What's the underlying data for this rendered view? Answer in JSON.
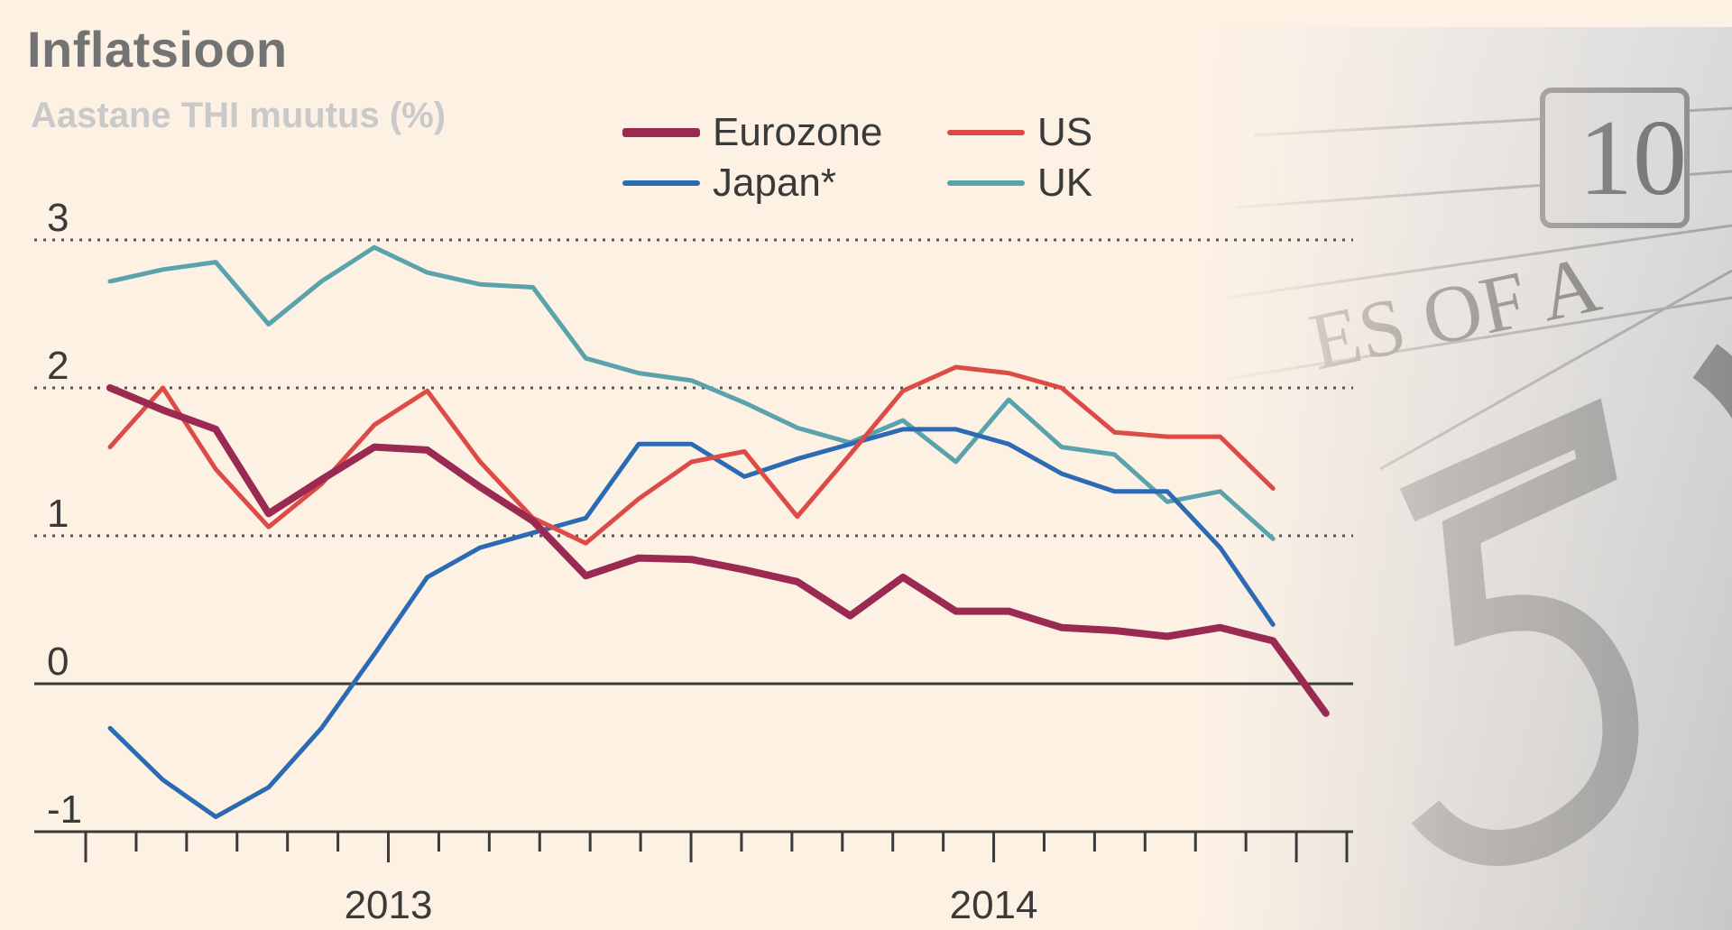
{
  "colors": {
    "background": "#fdf1e4",
    "eurozone": "#9b2a53",
    "us": "#dd4b47",
    "japan": "#2c6bb4",
    "uk": "#5aa3ad",
    "axis": "#3a3a3a",
    "grid": "#555555"
  },
  "chart_data": {
    "type": "line",
    "title": "Inflatsioon",
    "subtitle": "Aastane THI muutus (%)",
    "xlabel": "",
    "ylabel": "",
    "ylim": [
      -1,
      3
    ],
    "yticks": [
      3,
      2,
      1,
      0,
      -1
    ],
    "x_labels": [
      "2013",
      "2014"
    ],
    "x_label_index": [
      6,
      18
    ],
    "months": [
      "2012-07",
      "2012-08",
      "2012-09",
      "2012-10",
      "2012-11",
      "2012-12",
      "2013-01",
      "2013-02",
      "2013-03",
      "2013-04",
      "2013-05",
      "2013-06",
      "2013-07",
      "2013-08",
      "2013-09",
      "2013-10",
      "2013-11",
      "2013-12",
      "2014-01",
      "2014-02",
      "2014-03",
      "2014-04",
      "2014-05",
      "2014-06",
      "2014-07",
      "2014-08"
    ],
    "grid": "dotted horizontal",
    "legend_position": "top",
    "series": [
      {
        "name": "Eurozone",
        "key": "eurozone",
        "width": 8,
        "values": [
          2.0,
          1.85,
          1.72,
          1.15,
          1.38,
          1.6,
          1.58,
          1.33,
          1.1,
          0.73,
          0.85,
          0.84,
          0.77,
          0.69,
          0.46,
          0.72,
          0.49,
          0.49,
          0.38,
          0.36,
          0.32,
          0.38,
          0.29,
          -0.2,
          null,
          null
        ]
      },
      {
        "name": "US",
        "key": "us",
        "width": 5,
        "values": [
          1.6,
          2.0,
          1.45,
          1.06,
          1.35,
          1.75,
          1.98,
          1.5,
          1.12,
          0.95,
          1.25,
          1.5,
          1.57,
          1.13,
          1.55,
          1.98,
          2.14,
          2.1,
          2.0,
          1.7,
          1.67,
          1.67,
          1.32,
          null,
          null,
          null
        ]
      },
      {
        "name": "Japan*",
        "key": "japan",
        "width": 5,
        "values": [
          -0.3,
          -0.65,
          -0.9,
          -0.7,
          -0.3,
          0.2,
          0.72,
          0.92,
          1.02,
          1.12,
          1.62,
          1.62,
          1.4,
          1.52,
          1.62,
          1.72,
          1.72,
          1.62,
          1.42,
          1.3,
          1.3,
          0.92,
          0.4,
          null,
          null,
          null
        ]
      },
      {
        "name": "UK",
        "key": "uk",
        "width": 5,
        "values": [
          2.72,
          2.8,
          2.85,
          2.43,
          2.72,
          2.95,
          2.78,
          2.7,
          2.68,
          2.2,
          2.1,
          2.05,
          1.9,
          1.73,
          1.63,
          1.78,
          1.5,
          1.92,
          1.6,
          1.55,
          1.23,
          1.3,
          0.98,
          null,
          null,
          null
        ]
      }
    ]
  }
}
